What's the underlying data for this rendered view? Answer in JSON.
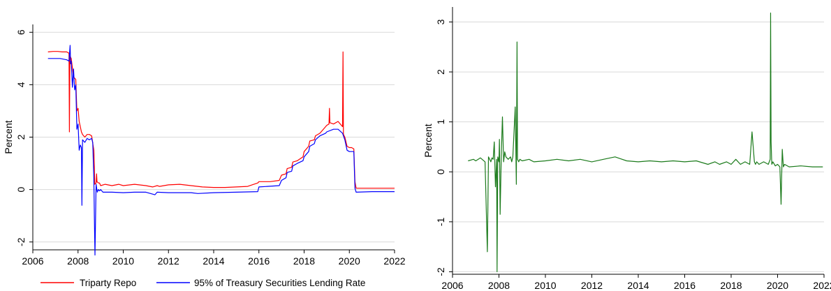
{
  "chart_data": [
    {
      "type": "line",
      "ylabel": "Percent",
      "xlim": [
        2006,
        2022
      ],
      "ylim": [
        -2.3,
        6.3
      ],
      "xticks": [
        2006,
        2008,
        2010,
        2012,
        2014,
        2016,
        2018,
        2020,
        2022
      ],
      "yticks": [
        -2,
        0,
        2,
        4,
        6
      ],
      "ytick_labels": [
        "-2",
        "0",
        "2",
        "4",
        "6"
      ],
      "grid": "horizontal",
      "legend": "bottom",
      "series": [
        {
          "name": "Triparty Repo",
          "color": "#ff0000",
          "x": [
            2006.67,
            2006.9,
            2007.1,
            2007.3,
            2007.5,
            2007.6,
            2007.62,
            2007.64,
            2007.7,
            2007.8,
            2007.9,
            2007.95,
            2008.0,
            2008.05,
            2008.1,
            2008.15,
            2008.2,
            2008.25,
            2008.3,
            2008.35,
            2008.4,
            2008.5,
            2008.6,
            2008.7,
            2008.72,
            2008.74,
            2008.8,
            2008.82,
            2008.84,
            2008.9,
            2008.95,
            2009.0,
            2009.2,
            2009.5,
            2009.8,
            2010.0,
            2010.5,
            2011.0,
            2011.3,
            2011.5,
            2011.6,
            2012.0,
            2012.5,
            2013.0,
            2013.5,
            2014.0,
            2014.5,
            2015.0,
            2015.5,
            2015.95,
            2016.0,
            2016.5,
            2016.9,
            2017.0,
            2017.2,
            2017.25,
            2017.45,
            2017.5,
            2017.7,
            2017.95,
            2018.0,
            2018.2,
            2018.25,
            2018.45,
            2018.5,
            2018.7,
            2018.95,
            2019.0,
            2019.1,
            2019.12,
            2019.14,
            2019.3,
            2019.5,
            2019.7,
            2019.72,
            2019.74,
            2019.8,
            2019.9,
            2020.0,
            2020.1,
            2020.2,
            2020.25,
            2020.3,
            2020.5,
            2021.0,
            2021.5,
            2022.0
          ],
          "y": [
            5.25,
            5.27,
            5.27,
            5.25,
            5.25,
            5.2,
            2.2,
            5.1,
            5.0,
            4.3,
            4.2,
            3.0,
            3.1,
            2.6,
            2.4,
            2.2,
            2.1,
            2.05,
            2.0,
            2.05,
            2.1,
            2.1,
            2.05,
            1.5,
            0.9,
            0.2,
            0.25,
            0.6,
            0.3,
            0.25,
            0.25,
            0.15,
            0.2,
            0.15,
            0.2,
            0.15,
            0.2,
            0.15,
            0.1,
            0.15,
            0.12,
            0.18,
            0.2,
            0.15,
            0.1,
            0.08,
            0.08,
            0.1,
            0.12,
            0.25,
            0.3,
            0.3,
            0.35,
            0.55,
            0.6,
            0.8,
            0.85,
            1.05,
            1.1,
            1.25,
            1.45,
            1.65,
            1.85,
            1.9,
            2.05,
            2.15,
            2.4,
            2.45,
            2.5,
            3.1,
            2.55,
            2.5,
            2.6,
            2.4,
            5.25,
            2.1,
            2.0,
            1.65,
            1.6,
            1.6,
            1.55,
            0.3,
            0.05,
            0.05,
            0.05,
            0.05,
            0.05
          ]
        },
        {
          "name": "95% of Treasury Securities Lending Rate",
          "color": "#0000ff",
          "x": [
            2006.67,
            2006.9,
            2007.2,
            2007.5,
            2007.6,
            2007.65,
            2007.67,
            2007.7,
            2007.75,
            2007.8,
            2007.85,
            2007.9,
            2007.95,
            2008.0,
            2008.05,
            2008.1,
            2008.15,
            2008.17,
            2008.2,
            2008.3,
            2008.4,
            2008.5,
            2008.6,
            2008.65,
            2008.7,
            2008.72,
            2008.75,
            2008.8,
            2008.85,
            2008.9,
            2008.95,
            2009.0,
            2009.1,
            2009.5,
            2010.0,
            2010.5,
            2011.0,
            2011.4,
            2011.5,
            2012.0,
            2012.5,
            2013.0,
            2013.3,
            2014.0,
            2015.0,
            2015.95,
            2016.0,
            2016.9,
            2017.0,
            2017.2,
            2017.25,
            2017.45,
            2017.5,
            2017.7,
            2017.95,
            2018.0,
            2018.2,
            2018.25,
            2018.45,
            2018.5,
            2018.7,
            2018.95,
            2019.0,
            2019.3,
            2019.5,
            2019.7,
            2019.8,
            2019.9,
            2020.0,
            2020.2,
            2020.25,
            2020.3,
            2021.0,
            2022.0
          ],
          "y": [
            5.0,
            5.0,
            5.0,
            4.95,
            4.9,
            5.5,
            4.8,
            4.9,
            3.9,
            4.6,
            3.8,
            4.0,
            2.3,
            2.5,
            1.5,
            1.7,
            1.6,
            -0.6,
            1.9,
            1.8,
            1.95,
            1.9,
            1.95,
            1.8,
            0.4,
            -1.0,
            -2.5,
            0.2,
            -0.1,
            0.0,
            -0.05,
            0.0,
            -0.1,
            -0.1,
            -0.12,
            -0.1,
            -0.1,
            -0.2,
            -0.1,
            -0.12,
            -0.12,
            -0.12,
            -0.15,
            -0.12,
            -0.1,
            -0.08,
            0.1,
            0.15,
            0.35,
            0.45,
            0.65,
            0.7,
            0.9,
            1.0,
            1.1,
            1.25,
            1.45,
            1.65,
            1.75,
            1.9,
            2.05,
            2.15,
            2.2,
            2.3,
            2.3,
            2.15,
            1.9,
            1.5,
            1.45,
            1.45,
            0.05,
            -0.1,
            -0.08,
            -0.08
          ]
        }
      ]
    },
    {
      "type": "line",
      "ylabel": "Percent",
      "xlim": [
        2006,
        2022
      ],
      "ylim": [
        -2.05,
        3.3
      ],
      "xticks": [
        2006,
        2008,
        2010,
        2012,
        2014,
        2016,
        2018,
        2020,
        2022
      ],
      "yticks": [
        -2,
        -1,
        0,
        1,
        2,
        3
      ],
      "ytick_labels": [
        "-2",
        "-1",
        "0",
        "1",
        "2",
        "3"
      ],
      "grid": "horizontal",
      "series": [
        {
          "color": "#1a7a1a",
          "x": [
            2006.67,
            2006.9,
            2007.0,
            2007.2,
            2007.4,
            2007.5,
            2007.55,
            2007.6,
            2007.65,
            2007.7,
            2007.75,
            2007.8,
            2007.85,
            2007.9,
            2007.92,
            2007.95,
            2008.0,
            2008.02,
            2008.05,
            2008.1,
            2008.15,
            2008.2,
            2008.25,
            2008.3,
            2008.4,
            2008.5,
            2008.55,
            2008.6,
            2008.7,
            2008.75,
            2008.78,
            2008.8,
            2008.85,
            2008.9,
            2009.0,
            2009.3,
            2009.5,
            2010.0,
            2010.5,
            2011.0,
            2011.5,
            2012.0,
            2012.5,
            2013.0,
            2013.5,
            2014.0,
            2014.5,
            2015.0,
            2015.5,
            2016.0,
            2016.5,
            2017.0,
            2017.3,
            2017.5,
            2017.8,
            2018.0,
            2018.2,
            2018.4,
            2018.6,
            2018.8,
            2018.9,
            2019.0,
            2019.05,
            2019.1,
            2019.2,
            2019.4,
            2019.6,
            2019.68,
            2019.7,
            2019.72,
            2019.75,
            2019.8,
            2019.9,
            2020.0,
            2020.1,
            2020.15,
            2020.2,
            2020.25,
            2020.3,
            2020.5,
            2021.0,
            2021.5,
            2021.95
          ],
          "y": [
            0.22,
            0.25,
            0.22,
            0.28,
            0.2,
            -1.6,
            0.3,
            0.25,
            0.2,
            0.28,
            0.25,
            0.6,
            -0.3,
            0.25,
            -2.0,
            0.3,
            0.2,
            0.65,
            -0.85,
            0.3,
            1.1,
            0.2,
            0.4,
            0.3,
            0.25,
            0.3,
            0.2,
            0.3,
            1.3,
            -0.25,
            2.6,
            0.25,
            0.2,
            0.25,
            0.22,
            0.25,
            0.2,
            0.22,
            0.25,
            0.22,
            0.25,
            0.2,
            0.25,
            0.3,
            0.22,
            0.2,
            0.22,
            0.2,
            0.22,
            0.2,
            0.22,
            0.15,
            0.2,
            0.15,
            0.2,
            0.15,
            0.25,
            0.15,
            0.2,
            0.15,
            0.8,
            0.2,
            0.15,
            0.2,
            0.15,
            0.2,
            0.15,
            0.25,
            3.18,
            0.6,
            0.15,
            0.2,
            0.12,
            0.15,
            0.1,
            -0.65,
            0.45,
            0.1,
            0.15,
            0.1,
            0.12,
            0.1,
            0.1
          ]
        }
      ]
    }
  ]
}
